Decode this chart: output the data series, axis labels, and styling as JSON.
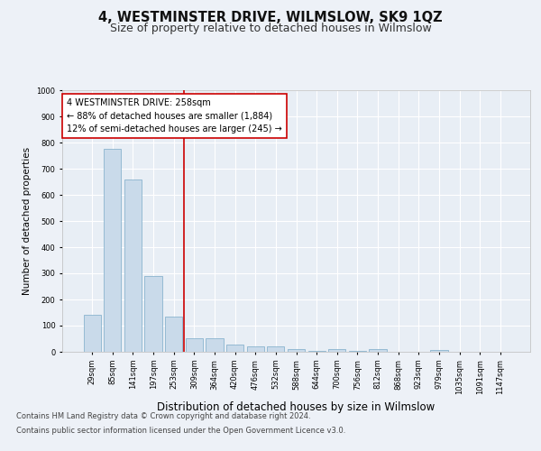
{
  "title": "4, WESTMINSTER DRIVE, WILMSLOW, SK9 1QZ",
  "subtitle": "Size of property relative to detached houses in Wilmslow",
  "xlabel": "Distribution of detached houses by size in Wilmslow",
  "ylabel": "Number of detached properties",
  "bar_labels": [
    "29sqm",
    "85sqm",
    "141sqm",
    "197sqm",
    "253sqm",
    "309sqm",
    "364sqm",
    "420sqm",
    "476sqm",
    "532sqm",
    "588sqm",
    "644sqm",
    "700sqm",
    "756sqm",
    "812sqm",
    "868sqm",
    "923sqm",
    "979sqm",
    "1035sqm",
    "1091sqm",
    "1147sqm"
  ],
  "bar_values": [
    140,
    775,
    660,
    290,
    135,
    52,
    52,
    28,
    20,
    20,
    12,
    5,
    12,
    5,
    12,
    0,
    0,
    8,
    0,
    0,
    0
  ],
  "bar_color": "#c9daea",
  "bar_edge_color": "#7aaac8",
  "vline_color": "#cc0000",
  "vline_pos": 4.5,
  "annotation_text": "4 WESTMINSTER DRIVE: 258sqm\n← 88% of detached houses are smaller (1,884)\n12% of semi-detached houses are larger (245) →",
  "annotation_box_facecolor": "#ffffff",
  "annotation_box_edgecolor": "#cc0000",
  "ylim": [
    0,
    1000
  ],
  "yticks": [
    0,
    100,
    200,
    300,
    400,
    500,
    600,
    700,
    800,
    900,
    1000
  ],
  "bg_color": "#edf1f7",
  "plot_bg_color": "#e8eef5",
  "grid_color": "#ffffff",
  "title_fontsize": 10.5,
  "subtitle_fontsize": 9,
  "xlabel_fontsize": 8.5,
  "ylabel_fontsize": 7.5,
  "tick_fontsize": 6,
  "annotation_fontsize": 7,
  "footer_fontsize": 6,
  "footer_line1": "Contains HM Land Registry data © Crown copyright and database right 2024.",
  "footer_line2": "Contains public sector information licensed under the Open Government Licence v3.0."
}
